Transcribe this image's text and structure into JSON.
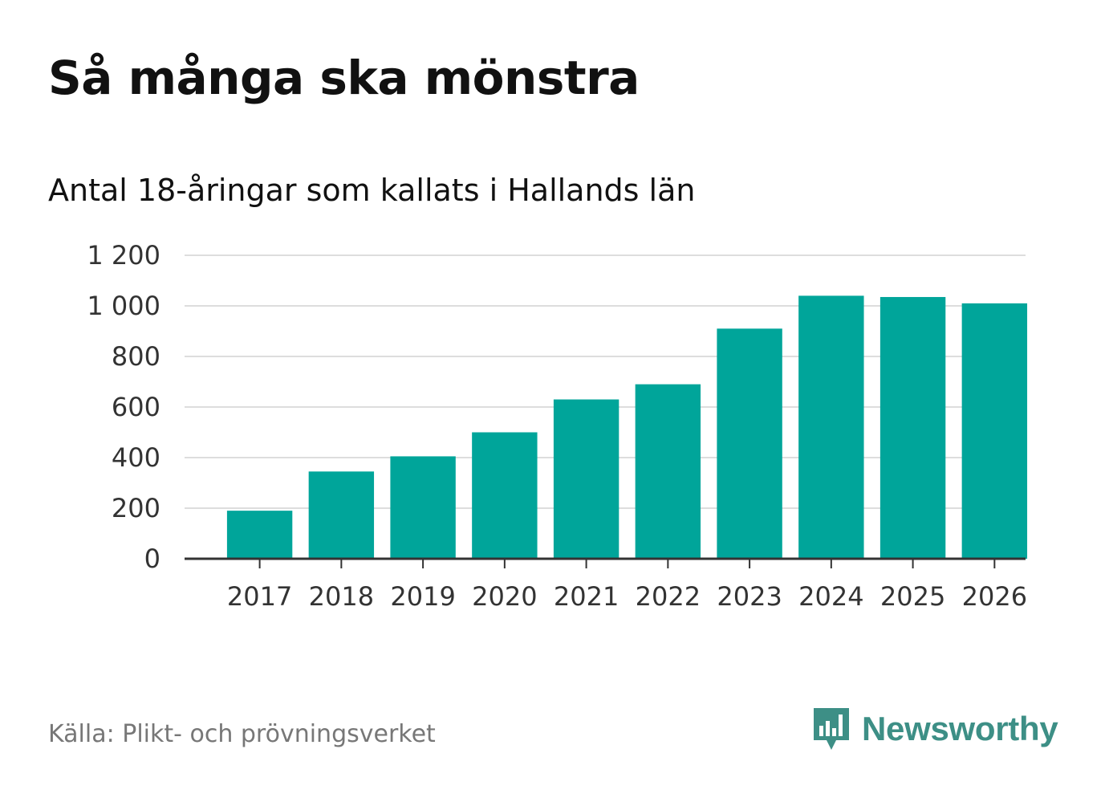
{
  "title": "Så många ska mönstra",
  "subtitle": "Antal 18-åringar som kallats i Hallands län",
  "source": "Källa: Plikt- och prövningsverket",
  "brand": {
    "name": "Newsworthy",
    "icon": "newsworthy-logo-icon",
    "color": "#3d8f86"
  },
  "colors": {
    "bar": "#00a59a",
    "grid": "#dddddd",
    "axis": "#333333"
  },
  "chart_data": {
    "type": "bar",
    "title": "Så många ska mönstra",
    "subtitle": "Antal 18-åringar som kallats i Hallands län",
    "xlabel": "",
    "ylabel": "",
    "categories": [
      "2017",
      "2018",
      "2019",
      "2020",
      "2021",
      "2022",
      "2023",
      "2024",
      "2025",
      "2026"
    ],
    "values": [
      190,
      345,
      405,
      500,
      630,
      690,
      910,
      1040,
      1035,
      1010
    ],
    "ylim": [
      0,
      1200
    ],
    "yticks": [
      0,
      200,
      400,
      600,
      800,
      1000,
      1200
    ],
    "ytick_labels": [
      "0",
      "200",
      "400",
      "600",
      "800",
      "1 000",
      "1 200"
    ],
    "grid": true,
    "legend": "none"
  }
}
